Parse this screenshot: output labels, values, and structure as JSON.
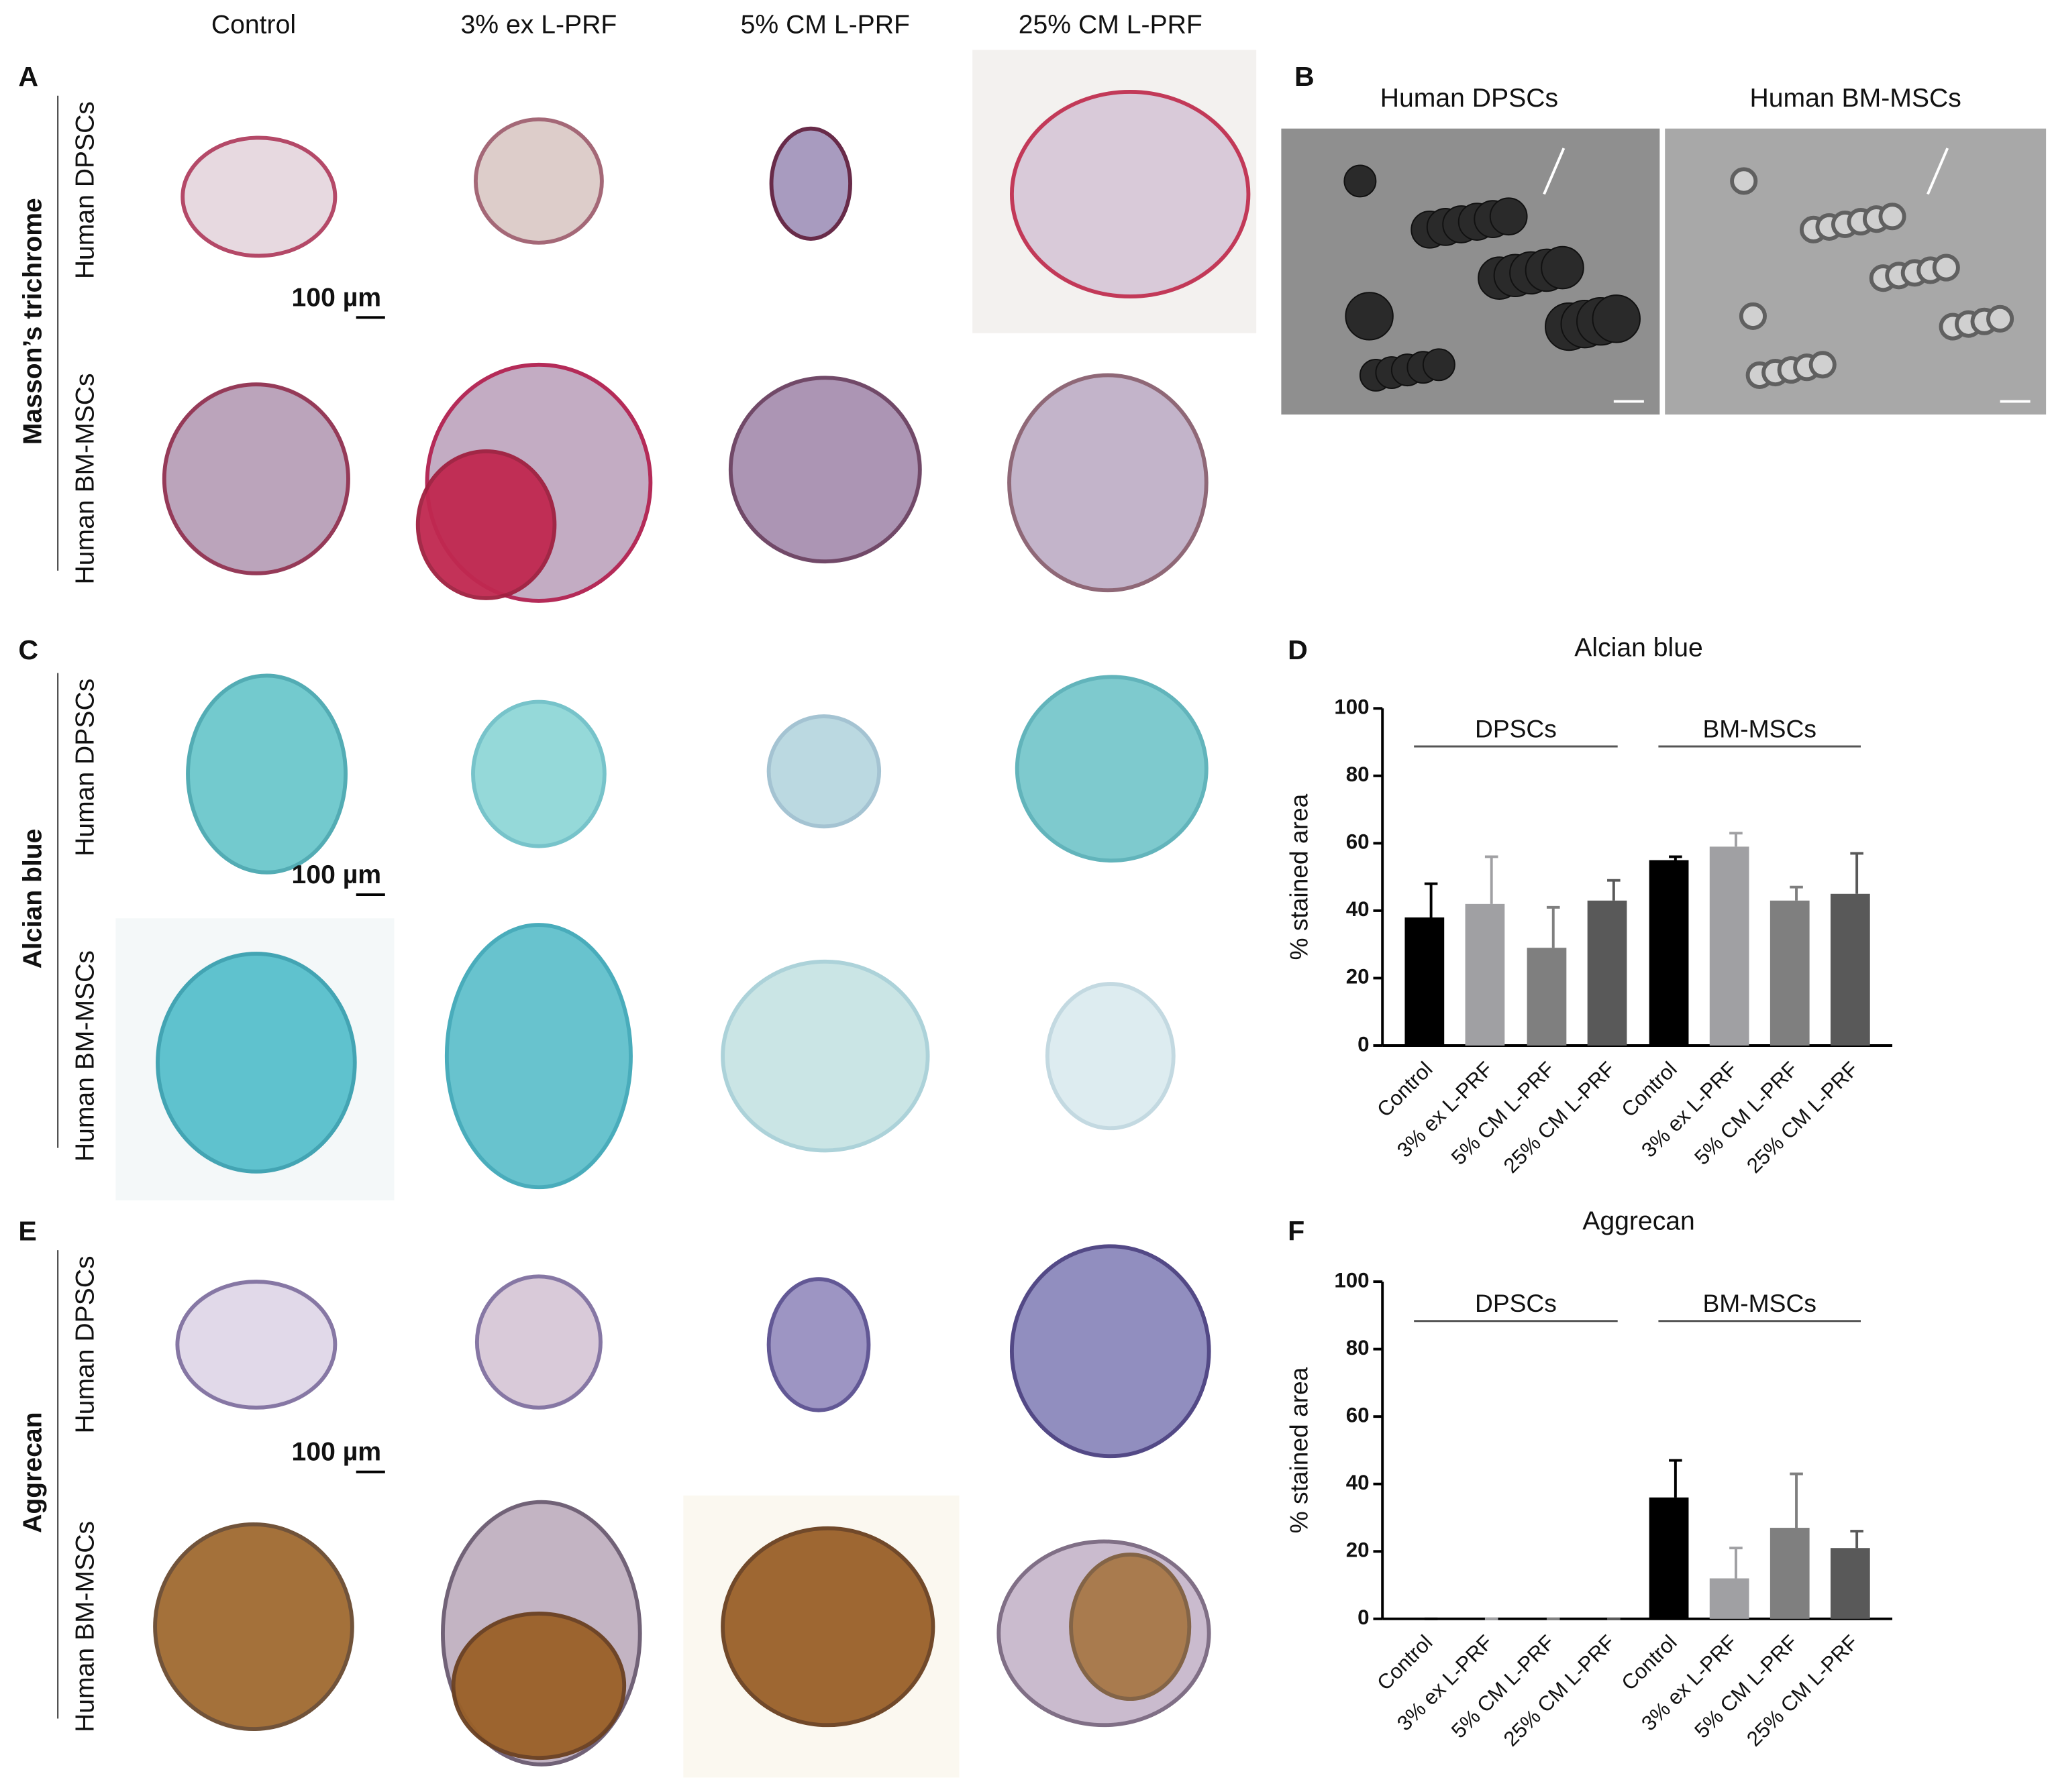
{
  "columns": [
    "Control",
    "3% ex L-PRF",
    "5% CM L-PRF",
    "25% CM L-PRF"
  ],
  "rows": [
    "Human DPSCs",
    "Human BM-MSCs"
  ],
  "stains": [
    "Masson’s trichrome",
    "Alcian blue",
    "Aggrecan"
  ],
  "panel_labels": [
    "A",
    "B",
    "C",
    "D",
    "E",
    "F"
  ],
  "scale_bar": "100 µm",
  "chart_data": [
    {
      "type": "bar",
      "title": "Alcian blue",
      "ylabel": "% stained area",
      "categories": [
        "Control",
        "3% ex L-PRF",
        "5% CM L-PRF",
        "25% CM L-PRF",
        "Control",
        "3% ex L-PRF",
        "5% CM L-PRF",
        "25% CM L-PRF"
      ],
      "values": [
        38,
        42,
        29,
        43,
        55,
        59,
        43,
        45
      ],
      "errors": [
        10,
        14,
        12,
        6,
        1,
        4,
        4,
        12
      ],
      "colors": [
        "#000000",
        "#a0a0a3",
        "#7f7f7f",
        "#595959",
        "#000000",
        "#a0a0a3",
        "#7f7f7f",
        "#595959"
      ],
      "group_labels": [
        "DPSCs",
        "BM-MSCs"
      ],
      "ylim": [
        0,
        100
      ],
      "yticks": [
        0,
        20,
        40,
        60,
        80,
        100
      ],
      "grid": false
    },
    {
      "type": "bar",
      "title": "Aggrecan",
      "ylabel": "% stained area",
      "categories": [
        "Control",
        "3% ex L-PRF",
        "5% CM L-PRF",
        "25% CM L-PRF",
        "Control",
        "3% ex L-PRF",
        "5% CM L-PRF",
        "25% CM L-PRF"
      ],
      "values": [
        0,
        0,
        0,
        0,
        36,
        12,
        27,
        21
      ],
      "errors": [
        0,
        0,
        0,
        0,
        11,
        9,
        16,
        5
      ],
      "colors": [
        "#000000",
        "#a0a0a3",
        "#7f7f7f",
        "#595959",
        "#000000",
        "#a0a0a3",
        "#7f7f7f",
        "#595959"
      ],
      "group_labels": [
        "DPSCs",
        "BM-MSCs"
      ],
      "ylim": [
        0,
        100
      ],
      "yticks": [
        0,
        20,
        40,
        60,
        80,
        100
      ],
      "grid": false
    }
  ]
}
